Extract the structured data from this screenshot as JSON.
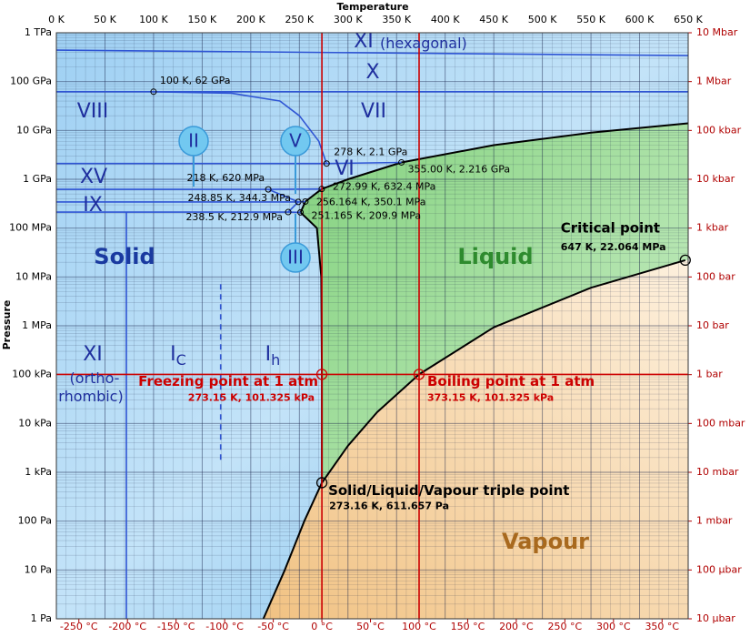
{
  "chart_data": {
    "type": "phase-diagram",
    "x_label": "Temperature",
    "y_label": "Pressure",
    "xlim": [
      0,
      650
    ],
    "xticks": [
      {
        "value": 0,
        "label": "0 K"
      },
      {
        "value": 50,
        "label": "50 K"
      },
      {
        "value": 100,
        "label": "100 K"
      },
      {
        "value": 150,
        "label": "150 K"
      },
      {
        "value": 200,
        "label": "200 K"
      },
      {
        "value": 250,
        "label": "250 K"
      },
      {
        "value": 300,
        "label": "300 K"
      },
      {
        "value": 350,
        "label": "350 K"
      },
      {
        "value": 400,
        "label": "400 K"
      },
      {
        "value": 450,
        "label": "450 K"
      },
      {
        "value": 500,
        "label": "500 K"
      },
      {
        "value": 550,
        "label": "550 K"
      },
      {
        "value": 600,
        "label": "600 K"
      },
      {
        "value": 650,
        "label": "650 K"
      }
    ],
    "x2lim": [
      -273.15,
      376.85
    ],
    "x2ticks": [
      {
        "value": -250,
        "label": "-250 °C"
      },
      {
        "value": -200,
        "label": "-200 °C"
      },
      {
        "value": -150,
        "label": "-150 °C"
      },
      {
        "value": -100,
        "label": "-100 °C"
      },
      {
        "value": -50,
        "label": "-50 °C"
      },
      {
        "value": 0,
        "label": "0 °C"
      },
      {
        "value": 50,
        "label": "50 °C"
      },
      {
        "value": 100,
        "label": "100 °C"
      },
      {
        "value": 150,
        "label": "150 °C"
      },
      {
        "value": 200,
        "label": "200 °C"
      },
      {
        "value": 250,
        "label": "250 °C"
      },
      {
        "value": 300,
        "label": "300 °C"
      },
      {
        "value": 350,
        "label": "350 °C"
      }
    ],
    "ylim": [
      1,
      1000000000000.0
    ],
    "yscale": "log",
    "yticks": [
      {
        "value": 1000000000000.0,
        "label": "1 TPa"
      },
      {
        "value": 100000000000.0,
        "label": "100 GPa"
      },
      {
        "value": 10000000000.0,
        "label": "10 GPa"
      },
      {
        "value": 1000000000.0,
        "label": "1 GPa"
      },
      {
        "value": 100000000.0,
        "label": "100 MPa"
      },
      {
        "value": 10000000.0,
        "label": "10 MPa"
      },
      {
        "value": 1000000.0,
        "label": "1 MPa"
      },
      {
        "value": 100000.0,
        "label": "100 kPa"
      },
      {
        "value": 10000.0,
        "label": "10 kPa"
      },
      {
        "value": 1000.0,
        "label": "1 kPa"
      },
      {
        "value": 100,
        "label": "100 Pa"
      },
      {
        "value": 10,
        "label": "10 Pa"
      },
      {
        "value": 1,
        "label": "1 Pa"
      }
    ],
    "y2lim": [
      1e-05,
      10000000.0
    ],
    "y2ticks": [
      {
        "value": 10000000.0,
        "label": "10 Mbar"
      },
      {
        "value": 1000000.0,
        "label": "1 Mbar"
      },
      {
        "value": 100000.0,
        "label": "100 kbar"
      },
      {
        "value": 10000.0,
        "label": "10 kbar"
      },
      {
        "value": 1000.0,
        "label": "1 kbar"
      },
      {
        "value": 100,
        "label": "100 bar"
      },
      {
        "value": 10,
        "label": "10 bar"
      },
      {
        "value": 1,
        "label": "1 bar"
      },
      {
        "value": 0.1,
        "label": "100 mbar"
      },
      {
        "value": 0.01,
        "label": "10 mbar"
      },
      {
        "value": 0.001,
        "label": "1 mbar"
      },
      {
        "value": 0.0001,
        "label": "100 µbar"
      },
      {
        "value": 1e-05,
        "label": "10 µbar"
      }
    ],
    "axis2_color": "#b00000",
    "grid": true,
    "minor_grid": true,
    "series": [
      {
        "color": "#000000",
        "x": [
          213,
          235,
          255,
          273.16,
          300,
          330,
          373.15,
          450,
          550,
          647
        ],
        "y": [
          1,
          10,
          100,
          611.657,
          3500,
          17000,
          101325,
          930000,
          6000000,
          22064000
        ]
      },
      {
        "color": "#000000",
        "x": [
          273.16,
          273.15,
          272.5,
          268,
          251.165,
          256.164,
          272.99,
          300,
          355,
          450,
          550,
          650
        ],
        "y": [
          611.657,
          101325,
          10000000,
          100000000,
          209900000,
          350100000,
          632400000,
          1000000000,
          2216000000,
          5000000000,
          9000000000,
          14000000000
        ]
      },
      {
        "color": "#2f55d4",
        "x": [
          0,
          650
        ],
        "y": [
          440000000000,
          340000000000
        ]
      },
      {
        "color": "#2f55d4",
        "x": [
          0,
          650
        ],
        "y": [
          62000000000,
          62000000000
        ]
      },
      {
        "color": "#2f55d4",
        "x": [
          100,
          180,
          230,
          250,
          270,
          278
        ],
        "y": [
          62000000000,
          58000000000,
          40000000000,
          20000000000,
          6000000000,
          2100000000
        ]
      },
      {
        "color": "#2f55d4",
        "x": [
          278,
          355
        ],
        "y": [
          2100000000,
          2216000000
        ]
      },
      {
        "color": "#2f55d4",
        "x": [
          0,
          278
        ],
        "y": [
          2100000000,
          2100000000
        ]
      },
      {
        "color": "#2f55d4",
        "x": [
          0,
          218
        ],
        "y": [
          620000000,
          620000000
        ]
      },
      {
        "color": "#2f55d4",
        "x": [
          218,
          272.99
        ],
        "y": [
          620000000,
          632400000
        ]
      },
      {
        "color": "#2f55d4",
        "x": [
          218,
          248.85
        ],
        "y": [
          620000000,
          344300000
        ]
      },
      {
        "color": "#2f55d4",
        "x": [
          248.85,
          256.164
        ],
        "y": [
          344300000,
          350100000
        ]
      },
      {
        "color": "#2f55d4",
        "x": [
          238.5,
          248.85
        ],
        "y": [
          212900000,
          344300000
        ]
      },
      {
        "color": "#2f55d4",
        "x": [
          0,
          248.85
        ],
        "y": [
          344300000,
          344300000
        ]
      },
      {
        "color": "#2f55d4",
        "x": [
          0,
          238.5
        ],
        "y": [
          212900000,
          212900000
        ]
      },
      {
        "color": "#2f55d4",
        "x": [
          238.5,
          251.165
        ],
        "y": [
          212900000,
          209900000
        ]
      },
      {
        "color": "#2f55d4",
        "x": [
          72,
          72
        ],
        "y": [
          1,
          210000000
        ]
      },
      {
        "color": "#2f55d4",
        "dash": true,
        "x": [
          169,
          169
        ],
        "y": [
          1800,
          7800000
        ]
      },
      {
        "color": "#cc0000",
        "x": [
          0,
          650
        ],
        "y": [
          101325,
          101325
        ]
      },
      {
        "color": "#cc0000",
        "x": [
          273.15,
          273.15
        ],
        "y": [
          1,
          1000000000000.0
        ]
      },
      {
        "color": "#cc0000",
        "x": [
          373.15,
          373.15
        ],
        "y": [
          1,
          1000000000000.0
        ]
      }
    ],
    "points": [
      {
        "x": 100,
        "y": 62000000000,
        "label": "100 K, 62 GPa",
        "color": "#000000"
      },
      {
        "x": 278,
        "y": 2100000000,
        "label": "278 K, 2.1 GPa",
        "color": "#000000"
      },
      {
        "x": 355,
        "y": 2216000000,
        "label": "355.00 K, 2.216 GPa",
        "color": "#000000"
      },
      {
        "x": 218,
        "y": 620000000,
        "label": "218 K, 620 MPa",
        "color": "#000000"
      },
      {
        "x": 272.99,
        "y": 632400000,
        "label": "272.99 K, 632.4 MPa",
        "color": "#000000"
      },
      {
        "x": 248.85,
        "y": 344300000,
        "label": "248.85 K, 344.3 MPa",
        "color": "#000000"
      },
      {
        "x": 256.164,
        "y": 350100000,
        "label": "256.164 K, 350.1 MPa",
        "color": "#000000"
      },
      {
        "x": 238.5,
        "y": 212900000,
        "label": "238.5 K, 212.9 MPa",
        "color": "#000000"
      },
      {
        "x": 251.165,
        "y": 209900000,
        "label": "251.165 K, 209.9 MPa",
        "color": "#000000"
      },
      {
        "x": 647,
        "y": 22064000,
        "title": "Critical point",
        "label": "647 K, 22.064 MPa",
        "color": "#000000"
      },
      {
        "x": 273.15,
        "y": 101325,
        "title": "Freezing point at 1 atm",
        "label": "273.15 K, 101.325 kPa",
        "color": "#cc0000"
      },
      {
        "x": 373.15,
        "y": 101325,
        "title": "Boiling point at 1 atm",
        "label": "373.15 K, 101.325 kPa",
        "color": "#cc0000"
      },
      {
        "x": 273.16,
        "y": 611.657,
        "title": "Solid/Liquid/Vapour triple point",
        "label": "273.16 K, 611.657 Pa",
        "color": "#000000"
      }
    ],
    "annotations": [
      {
        "text": "XI"
      },
      {
        "text": "(hexagonal)"
      },
      {
        "text": "X"
      },
      {
        "text": "VIII"
      },
      {
        "text": "VII"
      },
      {
        "text": "VI"
      },
      {
        "text": "XV"
      },
      {
        "text": "IX"
      },
      {
        "text": "Solid"
      },
      {
        "text": "Liquid"
      },
      {
        "text": "Vapour"
      },
      {
        "text": "XI"
      },
      {
        "text": "(ortho-"
      },
      {
        "text": "rhombic)"
      },
      {
        "text": "I",
        "sub": "C"
      },
      {
        "text": "I",
        "sub": "h"
      }
    ],
    "bubbles": [
      {
        "text": "II"
      },
      {
        "text": "V"
      },
      {
        "text": "III"
      }
    ]
  }
}
